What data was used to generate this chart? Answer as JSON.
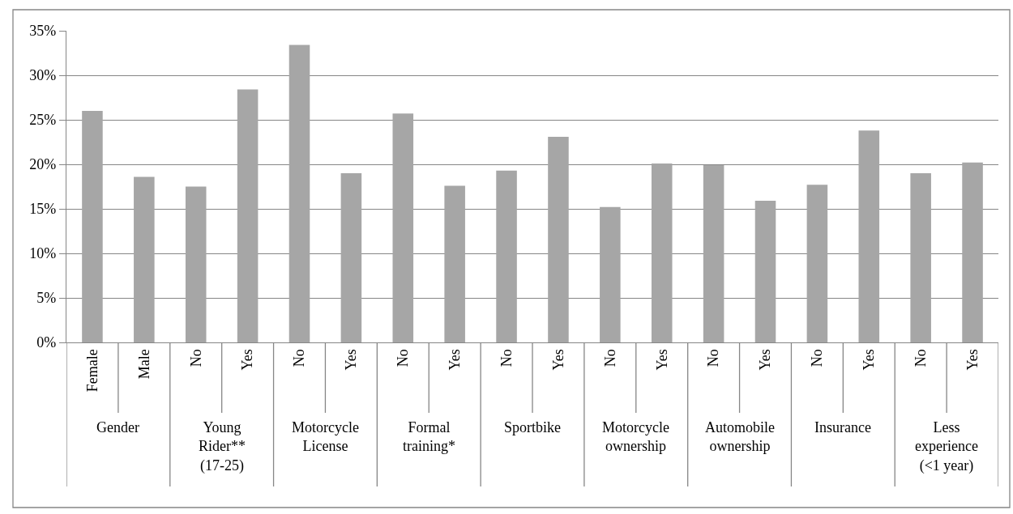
{
  "chart_data": {
    "type": "bar",
    "categories": [
      "Female",
      "Male",
      "No",
      "Yes",
      "No",
      "Yes",
      "No",
      "Yes",
      "No",
      "Yes",
      "No",
      "Yes",
      "No",
      "Yes",
      "No",
      "Yes",
      "No",
      "Yes"
    ],
    "values": [
      0.26,
      0.186,
      0.175,
      0.284,
      0.334,
      0.19,
      0.257,
      0.176,
      0.193,
      0.231,
      0.152,
      0.201,
      0.199,
      0.159,
      0.177,
      0.238,
      0.19,
      0.202
    ],
    "color": "#a6a6a6",
    "ylim": [
      0,
      0.35
    ],
    "yticks": [
      {
        "value": 0,
        "label": "0%"
      },
      {
        "value": 0.05,
        "label": "5%"
      },
      {
        "value": 0.1,
        "label": "10%"
      },
      {
        "value": 0.15,
        "label": "15%"
      },
      {
        "value": 0.2,
        "label": "20%"
      },
      {
        "value": 0.25,
        "label": "25%"
      },
      {
        "value": 0.3,
        "label": "30%"
      },
      {
        "value": 0.35,
        "label": "35%"
      }
    ],
    "grid": "y",
    "annotations": [
      "Gender",
      "Young\nRider**\n(17-25)",
      "Motorcycle\nLicense",
      "Formal\ntraining*",
      "Sportbike",
      "Motorcycle\nownership",
      "Automobile\nownership",
      "Insurance",
      "Less\nexperience\n(<1 year)"
    ]
  }
}
